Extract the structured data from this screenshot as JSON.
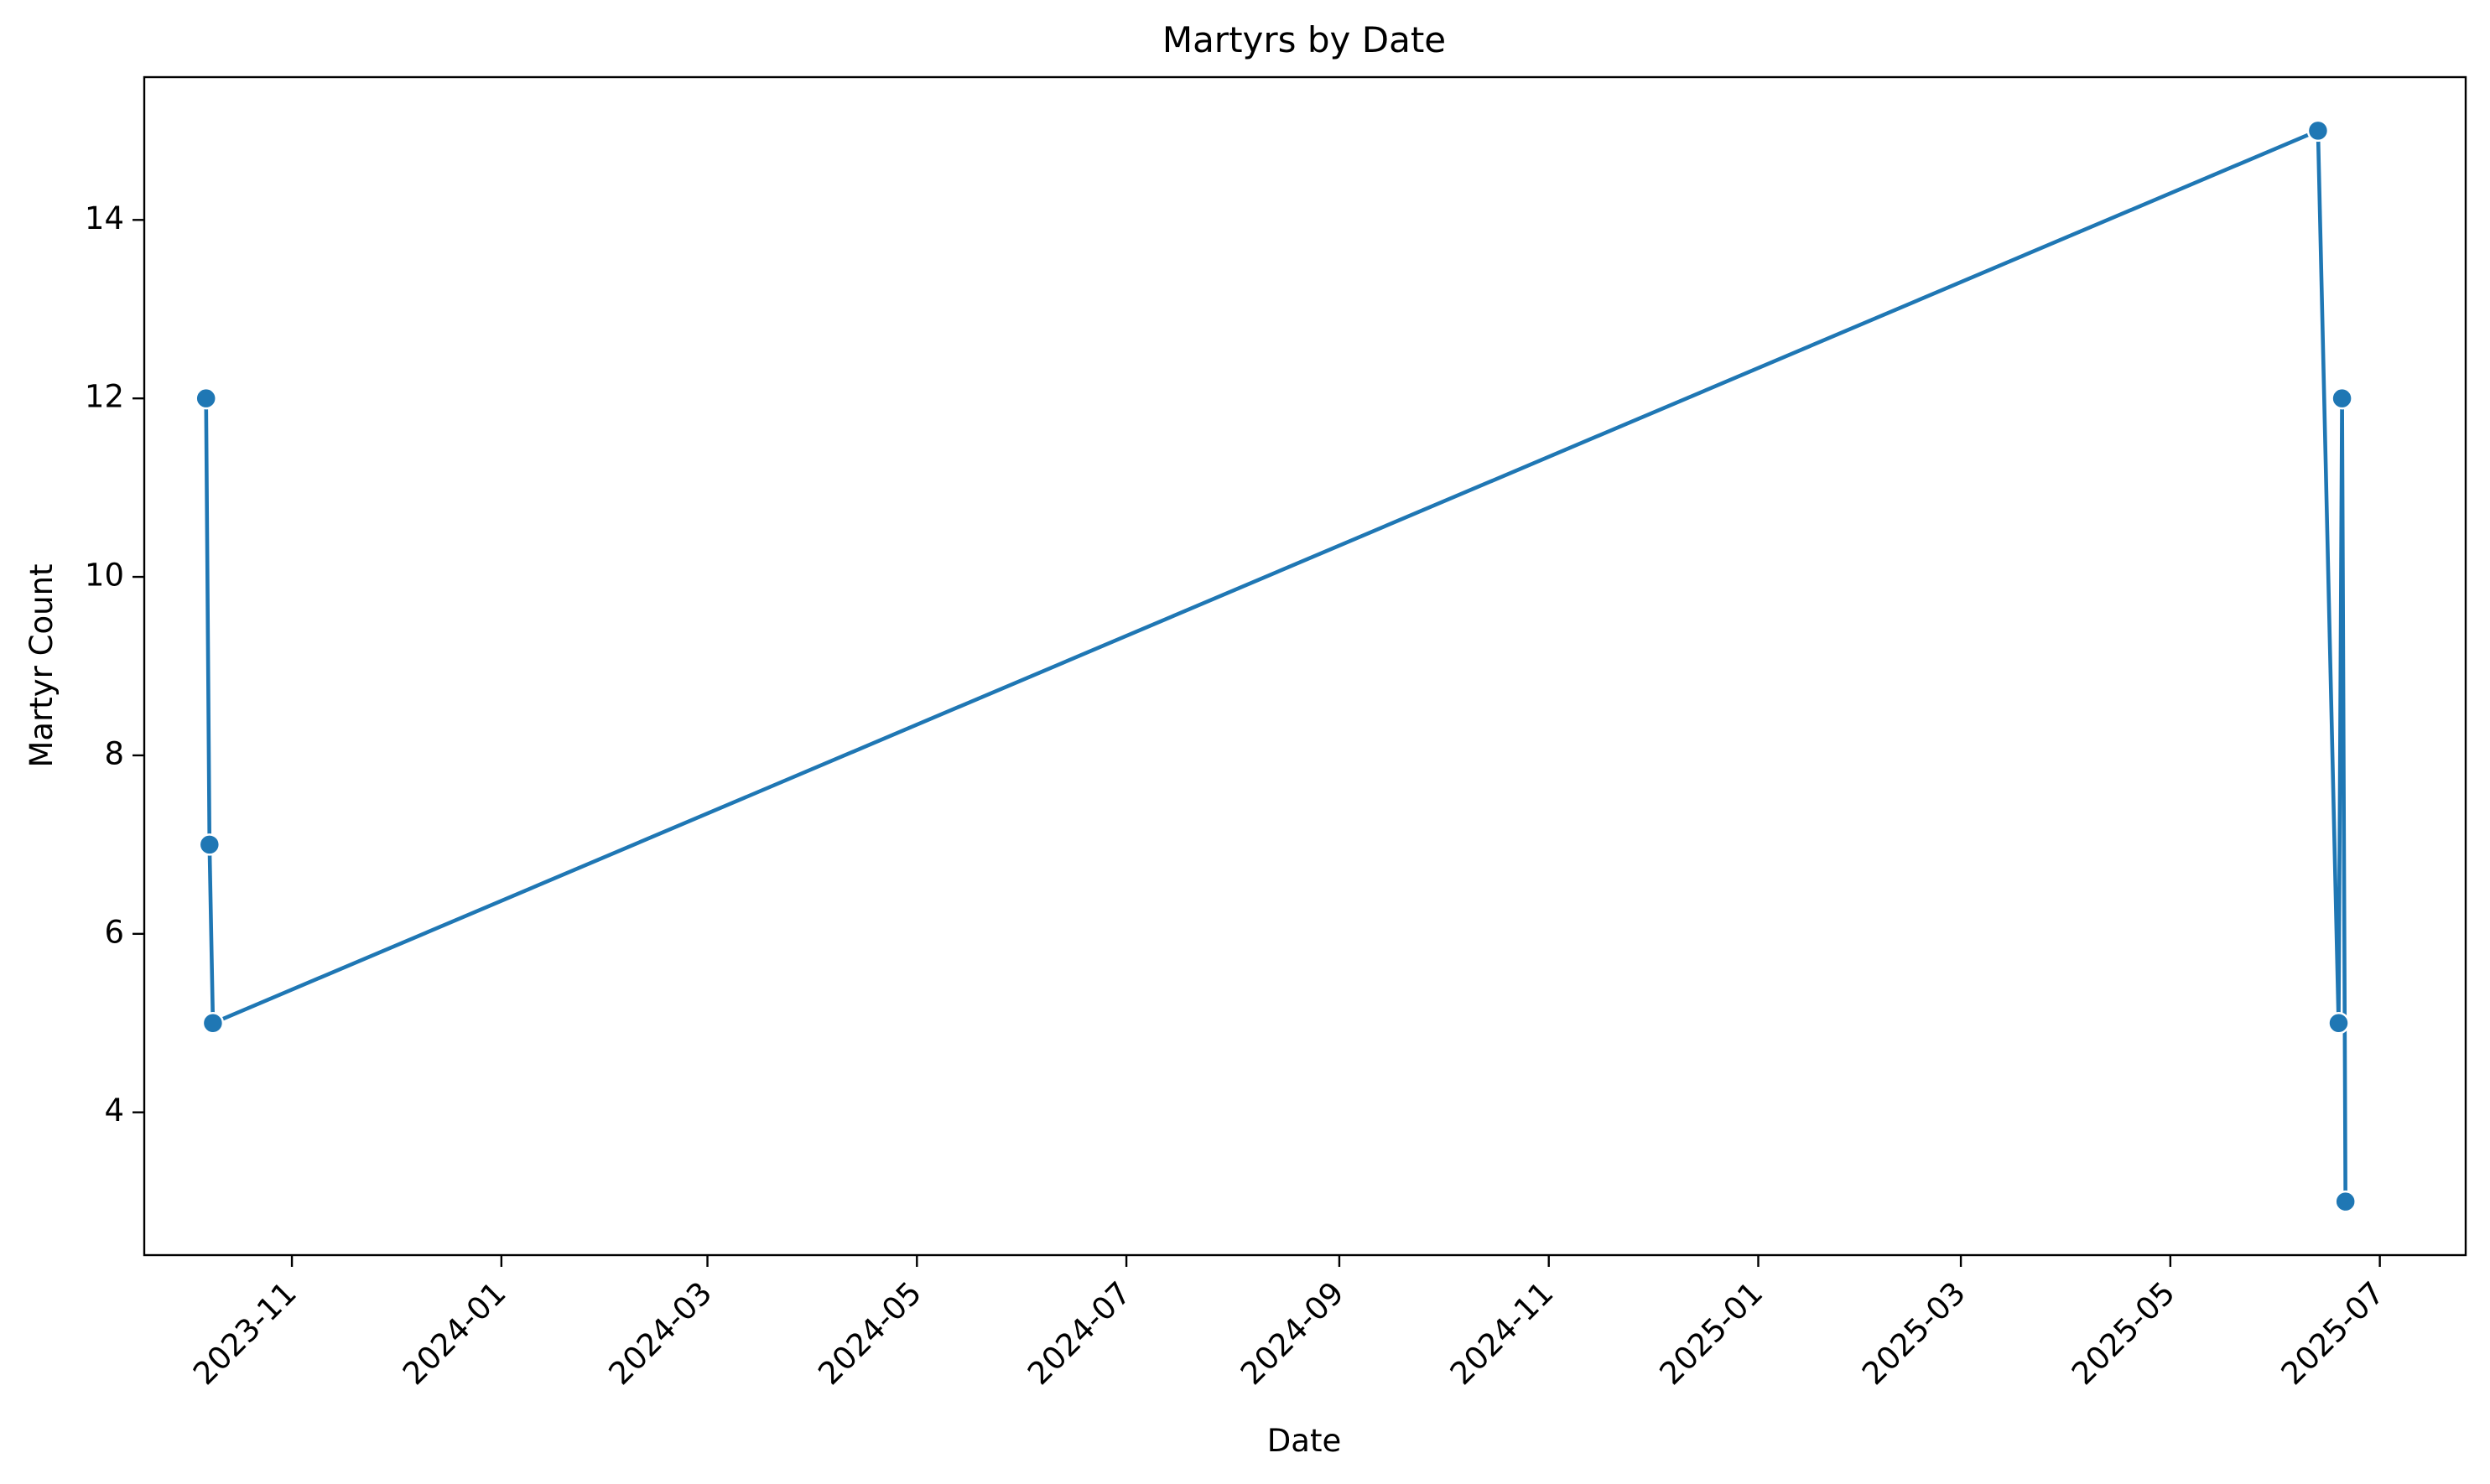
{
  "chart_data": {
    "type": "line",
    "title": "Martyrs by Date",
    "xlabel": "Date",
    "ylabel": "Martyr Count",
    "x_ticks": [
      "2023-11",
      "2024-01",
      "2024-03",
      "2024-05",
      "2024-07",
      "2024-09",
      "2024-11",
      "2025-01",
      "2025-03",
      "2025-05",
      "2025-07"
    ],
    "y_ticks": [
      4,
      6,
      8,
      10,
      12,
      14
    ],
    "xlim": [
      "2023-09-19",
      "2025-07-26"
    ],
    "ylim": [
      2.4,
      15.6
    ],
    "grid": false,
    "series": [
      {
        "name": "",
        "color": "#1f77b4",
        "x": [
          "2023-10-07",
          "2023-10-08",
          "2023-10-09",
          "2025-06-13",
          "2025-06-19",
          "2025-06-20",
          "2025-06-21"
        ],
        "y": [
          12,
          7,
          5,
          15,
          5,
          12,
          3
        ]
      }
    ]
  }
}
